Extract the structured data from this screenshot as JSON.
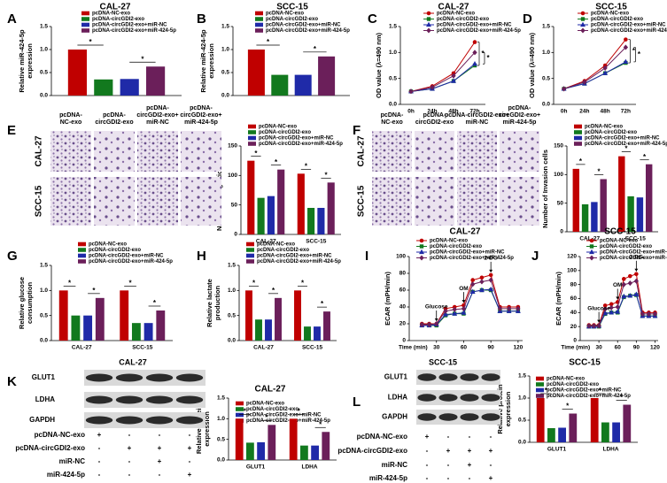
{
  "panel_letters": [
    "A",
    "B",
    "C",
    "D",
    "E",
    "F",
    "G",
    "H",
    "I",
    "J",
    "K",
    "L"
  ],
  "chart_data": [
    {
      "type": "bar",
      "title": "CAL-27",
      "ylabel": [
        "Relative miR-424-5p",
        "expression"
      ],
      "ylim": [
        0,
        1.5
      ],
      "yticks": [
        {
          "value": 0,
          "label": "0.0"
        },
        0.5,
        {
          "value": 1,
          "label": "1.0"
        },
        1.5
      ],
      "significance_marker": "*",
      "series": [
        {
          "name": "pcDNA-NC-exo",
          "color": "#c00000",
          "values": [
            1.0
          ]
        },
        {
          "name": "pcDNA-circGDI2-exo",
          "color": "#12791e",
          "values": [
            0.35
          ]
        },
        {
          "name": "pcDNA-circGDI2-exo+miR-NC",
          "color": "#1f2aa8",
          "values": [
            0.36
          ]
        },
        {
          "name": "pcDNA-circGDI2-exo+miR-424-5p",
          "color": "#6b1f5a",
          "values": [
            0.63
          ]
        }
      ]
    },
    {
      "type": "bar",
      "title": "SCC-15",
      "ylabel": [
        "Relative miR-424-5p",
        "expression"
      ],
      "ylim": [
        0,
        1.5
      ],
      "yticks": [
        {
          "value": 0,
          "label": "0.0"
        },
        0.5,
        {
          "value": 1,
          "label": "1.0"
        },
        1.5
      ],
      "significance_marker": "*",
      "series": [
        {
          "name": "pcDNA-NC-exo",
          "color": "#c00000",
          "values": [
            1.0
          ]
        },
        {
          "name": "pcDNA-circGDI2-exo",
          "color": "#12791e",
          "values": [
            0.45
          ]
        },
        {
          "name": "pcDNA-circGDI2-exo+miR-NC",
          "color": "#1f2aa8",
          "values": [
            0.45
          ]
        },
        {
          "name": "pcDNA-circGDI2-exo+miR-424-5p",
          "color": "#6b1f5a",
          "values": [
            0.85
          ]
        }
      ]
    },
    {
      "type": "line",
      "title": "CAL-27",
      "ylabel": [
        "OD value (λ=490 nm)"
      ],
      "categories": [
        "0h",
        "24h",
        "48h",
        "72h"
      ],
      "ylim": [
        0,
        1.5
      ],
      "yticks": [
        {
          "value": 0,
          "label": "0.0"
        },
        0.5,
        {
          "value": 1,
          "label": "1.0"
        },
        1.5
      ],
      "significance_marker": "*",
      "series": [
        {
          "name": "pcDNA-NC-exo",
          "color": "#c00000",
          "values": [
            0.25,
            0.35,
            0.6,
            1.2
          ]
        },
        {
          "name": "pcDNA-circGDI2-exo",
          "color": "#12791e",
          "values": [
            0.25,
            0.3,
            0.45,
            0.75
          ]
        },
        {
          "name": "pcDNA-circGDI2-exo+miR-NC",
          "color": "#1f2aa8",
          "values": [
            0.25,
            0.3,
            0.45,
            0.78
          ]
        },
        {
          "name": "pcDNA-circGDI2-exo+miR-424-5p",
          "color": "#6b1f5a",
          "values": [
            0.25,
            0.33,
            0.55,
            1.0
          ]
        }
      ]
    },
    {
      "type": "line",
      "title": "SCC-15",
      "ylabel": [
        "OD value (λ=490 nm)"
      ],
      "categories": [
        "0h",
        "24h",
        "48h",
        "72h"
      ],
      "ylim": [
        0,
        1.5
      ],
      "yticks": [
        {
          "value": 0,
          "label": "0.0"
        },
        0.5,
        {
          "value": 1,
          "label": "1.0"
        },
        1.5
      ],
      "significance_marker": "*",
      "series": [
        {
          "name": "pcDNA-NC-exo",
          "color": "#c00000",
          "values": [
            0.3,
            0.45,
            0.75,
            1.25
          ]
        },
        {
          "name": "pcDNA-circGDI2-exo",
          "color": "#12791e",
          "values": [
            0.3,
            0.4,
            0.6,
            0.8
          ]
        },
        {
          "name": "pcDNA-circGDI2-exo+miR-NC",
          "color": "#1f2aa8",
          "values": [
            0.3,
            0.4,
            0.6,
            0.82
          ]
        },
        {
          "name": "pcDNA-circGDI2-exo+miR-424-5p",
          "color": "#6b1f5a",
          "values": [
            0.3,
            0.43,
            0.7,
            1.1
          ]
        }
      ]
    },
    {
      "type": "bar",
      "ylabel": [
        "Number of Migration cells"
      ],
      "categories": [
        "CAL-27",
        "SCC-15"
      ],
      "ylim": [
        0,
        150
      ],
      "yticks": [
        0,
        50,
        100,
        150
      ],
      "significance_marker": "*",
      "series": [
        {
          "name": "pcDNA-NC-exo",
          "color": "#c00000",
          "values": [
            125,
            103
          ]
        },
        {
          "name": "pcDNA-circGDI2-exo",
          "color": "#12791e",
          "values": [
            62,
            45
          ]
        },
        {
          "name": "pcDNA-circGDI2-exo+miR-NC",
          "color": "#1f2aa8",
          "values": [
            65,
            45
          ]
        },
        {
          "name": "pcDNA-circGDI2-exo+miR-424-5p",
          "color": "#6b1f5a",
          "values": [
            110,
            88
          ]
        }
      ]
    },
    {
      "type": "bar",
      "ylabel": [
        "Number of Invasion cells"
      ],
      "categories": [
        "CAL-27",
        "SCC-15"
      ],
      "ylim": [
        0,
        150
      ],
      "yticks": [
        0,
        50,
        100,
        150
      ],
      "significance_marker": "*",
      "series": [
        {
          "name": "pcDNA-NC-exo",
          "color": "#c00000",
          "values": [
            110,
            132
          ]
        },
        {
          "name": "pcDNA-circGDI2-exo",
          "color": "#12791e",
          "values": [
            48,
            62
          ]
        },
        {
          "name": "pcDNA-circGDI2-exo+miR-NC",
          "color": "#1f2aa8",
          "values": [
            52,
            60
          ]
        },
        {
          "name": "pcDNA-circGDI2-exo+miR-424-5p",
          "color": "#6b1f5a",
          "values": [
            92,
            118
          ]
        }
      ]
    },
    {
      "type": "bar",
      "ylabel": [
        "Relative glucose",
        "consumption"
      ],
      "categories": [
        "CAL-27",
        "SCC-15"
      ],
      "ylim": [
        0,
        1.5
      ],
      "yticks": [
        {
          "value": 0,
          "label": "0.0"
        },
        0.5,
        {
          "value": 1,
          "label": "1.0"
        },
        1.5
      ],
      "significance_marker": "*",
      "series": [
        {
          "name": "pcDNA-NC-exo",
          "color": "#c00000",
          "values": [
            1.0,
            1.0
          ]
        },
        {
          "name": "pcDNA-circGDI2-exo",
          "color": "#12791e",
          "values": [
            0.5,
            0.35
          ]
        },
        {
          "name": "pcDNA-circGDI2-exo+miR-NC",
          "color": "#1f2aa8",
          "values": [
            0.5,
            0.35
          ]
        },
        {
          "name": "pcDNA-circGDI2-exo+miR-424-5p",
          "color": "#6b1f5a",
          "values": [
            0.85,
            0.6
          ]
        }
      ]
    },
    {
      "type": "bar",
      "ylabel": [
        "Relative lactate",
        "production"
      ],
      "categories": [
        "CAL-27",
        "SCC-15"
      ],
      "ylim": [
        0,
        1.5
      ],
      "yticks": [
        {
          "value": 0,
          "label": "0.0"
        },
        0.5,
        {
          "value": 1,
          "label": "1.0"
        },
        1.5
      ],
      "significance_marker": "*",
      "series": [
        {
          "name": "pcDNA-NC-exo",
          "color": "#c00000",
          "values": [
            1.0,
            1.0
          ]
        },
        {
          "name": "pcDNA-circGDI2-exo",
          "color": "#12791e",
          "values": [
            0.42,
            0.28
          ]
        },
        {
          "name": "pcDNA-circGDI2-exo+miR-NC",
          "color": "#1f2aa8",
          "values": [
            0.42,
            0.28
          ]
        },
        {
          "name": "pcDNA-circGDI2-exo+miR-424-5p",
          "color": "#6b1f5a",
          "values": [
            0.85,
            0.58
          ]
        }
      ]
    },
    {
      "type": "line",
      "title": "CAL-27",
      "ylabel": [
        "ECAR (mPH/min)"
      ],
      "xlabel": "Time (min)",
      "x": [
        14,
        22,
        30,
        40,
        50,
        60,
        70,
        80,
        90,
        100,
        110,
        120
      ],
      "xlim": [
        0,
        125
      ],
      "xticks": [
        30,
        60,
        90,
        120
      ],
      "ylim": [
        0,
        100
      ],
      "yticks": [
        0,
        20,
        40,
        60,
        80,
        100
      ],
      "annotations": [
        {
          "text": "Glucose",
          "x": 30
        },
        {
          "text": "OM",
          "x": 60
        },
        {
          "text": "2-DG",
          "x": 90
        }
      ],
      "series": [
        {
          "name": "pcDNA-NC-exo",
          "color": "#c00000",
          "values": [
            20,
            20,
            20,
            38,
            40,
            42,
            72,
            75,
            78,
            40,
            40,
            40
          ]
        },
        {
          "name": "pcDNA-circGDI2-exo",
          "color": "#12791e",
          "values": [
            18,
            18,
            18,
            30,
            32,
            32,
            58,
            60,
            60,
            35,
            35,
            35
          ]
        },
        {
          "name": "pcDNA-circGDI2-exo+miR-NC",
          "color": "#1f2aa8",
          "values": [
            18,
            18,
            19,
            31,
            32,
            33,
            58,
            60,
            61,
            35,
            35,
            35
          ]
        },
        {
          "name": "pcDNA-circGDI2-exo+miR-424-5p",
          "color": "#6b1f5a",
          "values": [
            19,
            19,
            20,
            35,
            37,
            38,
            67,
            70,
            72,
            38,
            38,
            38
          ]
        }
      ]
    },
    {
      "type": "line",
      "title": "SCC-15",
      "ylabel": [
        "ECAR (mPH/min)"
      ],
      "xlabel": "Time (min)",
      "x": [
        14,
        22,
        30,
        40,
        50,
        60,
        70,
        80,
        90,
        100,
        110,
        120
      ],
      "xlim": [
        0,
        125
      ],
      "xticks": [
        30,
        60,
        90,
        120
      ],
      "ylim": [
        0,
        120
      ],
      "yticks": [
        0,
        20,
        40,
        60,
        80,
        100,
        120
      ],
      "annotations": [
        {
          "text": "Glucose",
          "x": 30
        },
        {
          "text": "OM",
          "x": 60
        },
        {
          "text": "2-DG",
          "x": 90
        }
      ],
      "series": [
        {
          "name": "pcDNA-NC-exo",
          "color": "#c00000",
          "values": [
            22,
            22,
            22,
            50,
            52,
            55,
            88,
            92,
            95,
            40,
            40,
            40
          ]
        },
        {
          "name": "pcDNA-circGDI2-exo",
          "color": "#12791e",
          "values": [
            20,
            20,
            20,
            38,
            40,
            40,
            62,
            64,
            65,
            35,
            35,
            35
          ]
        },
        {
          "name": "pcDNA-circGDI2-exo+miR-NC",
          "color": "#1f2aa8",
          "values": [
            20,
            20,
            21,
            39,
            40,
            41,
            63,
            64,
            66,
            35,
            35,
            35
          ]
        },
        {
          "name": "pcDNA-circGDI2-exo+miR-424-5p",
          "color": "#6b1f5a",
          "values": [
            21,
            21,
            21,
            45,
            47,
            48,
            80,
            82,
            85,
            38,
            38,
            38
          ]
        }
      ]
    },
    {
      "type": "bar",
      "title": "CAL-27",
      "ylabel": [
        "Relative protein",
        "expression"
      ],
      "categories": [
        "GLUT1",
        "LDHA"
      ],
      "ylim": [
        0,
        1.5
      ],
      "yticks": [
        {
          "value": 0,
          "label": "0.0"
        },
        0.5,
        {
          "value": 1,
          "label": "1.0"
        },
        1.5
      ],
      "significance_marker": "*",
      "series": [
        {
          "name": "pcDNA-NC-exo",
          "color": "#c00000",
          "values": [
            1.0,
            1.0
          ]
        },
        {
          "name": "pcDNA-circGDI2-exo",
          "color": "#12791e",
          "values": [
            0.42,
            0.35
          ]
        },
        {
          "name": "pcDNA-circGDI2-exo+miR-NC",
          "color": "#1f2aa8",
          "values": [
            0.43,
            0.35
          ]
        },
        {
          "name": "pcDNA-circGDI2-exo+miR-424-5p",
          "color": "#6b1f5a",
          "values": [
            0.85,
            0.68
          ]
        }
      ]
    },
    {
      "type": "bar",
      "title": "SCC-15",
      "ylabel": [
        "Relative protein",
        "expression"
      ],
      "categories": [
        "GLUT1",
        "LDHA"
      ],
      "ylim": [
        0,
        1.5
      ],
      "yticks": [
        {
          "value": 0,
          "label": "0.0"
        },
        0.5,
        {
          "value": 1,
          "label": "1.0"
        },
        1.5
      ],
      "significance_marker": "*",
      "series": [
        {
          "name": "pcDNA-NC-exo",
          "color": "#c00000",
          "values": [
            1.0,
            1.0
          ]
        },
        {
          "name": "pcDNA-circGDI2-exo",
          "color": "#12791e",
          "values": [
            0.32,
            0.45
          ]
        },
        {
          "name": "pcDNA-circGDI2-exo+miR-NC",
          "color": "#1f2aa8",
          "values": [
            0.33,
            0.45
          ]
        },
        {
          "name": "pcDNA-circGDI2-exo+miR-424-5p",
          "color": "#6b1f5a",
          "values": [
            0.65,
            0.85
          ]
        }
      ]
    }
  ],
  "migration_images": {
    "columns": [
      [
        "pcDNA-",
        "NC-exo"
      ],
      [
        "pcDNA-",
        "circGDI2-exo"
      ],
      [
        "pcDNA-",
        "circGDI2-exo+",
        "miR-NC"
      ],
      [
        "pcDNA-",
        "circGDI2-exo+",
        "miR-424-5p"
      ]
    ],
    "rows": [
      "CAL-27",
      "SCC-15"
    ]
  },
  "invasion_images": {
    "columns": [
      [
        "pcDNA-",
        "NC-exo"
      ],
      [
        "pcDNA-",
        "circGDI2-exo"
      ],
      [
        "pcDNA-circGDI2-exo+",
        "miR-NC"
      ],
      [
        "pcDNA-",
        "circGDI2-exo+",
        "miR-424-5p"
      ]
    ],
    "rows": [
      "CAL-27",
      "SCC-15"
    ]
  },
  "western_blots": [
    {
      "title": "CAL-27",
      "bands": [
        "GLUT1",
        "LDHA",
        "GAPDH"
      ],
      "treatments": [
        {
          "label": "pcDNA-NC-exo",
          "signs": [
            "+",
            "-",
            "-",
            "-"
          ]
        },
        {
          "label": "pcDNA-circGDI2-exo",
          "signs": [
            "-",
            "+",
            "+",
            "+"
          ]
        },
        {
          "label": "miR-NC",
          "signs": [
            "-",
            "-",
            "+",
            "-"
          ]
        },
        {
          "label": "miR-424-5p",
          "signs": [
            "-",
            "-",
            "-",
            "+"
          ]
        }
      ]
    },
    {
      "title": "SCC-15",
      "bands": [
        "GLUT1",
        "LDHA",
        "GAPDH"
      ],
      "treatments": [
        {
          "label": "pcDNA-NC-exo",
          "signs": [
            "+",
            "-",
            "-",
            "-"
          ]
        },
        {
          "label": "pcDNA-circGDI2-exo",
          "signs": [
            "-",
            "+",
            "+",
            "+"
          ]
        },
        {
          "label": "miR-NC",
          "signs": [
            "-",
            "-",
            "+",
            "-"
          ]
        },
        {
          "label": "miR-424-5p",
          "signs": [
            "-",
            "-",
            "-",
            "+"
          ]
        }
      ]
    }
  ]
}
